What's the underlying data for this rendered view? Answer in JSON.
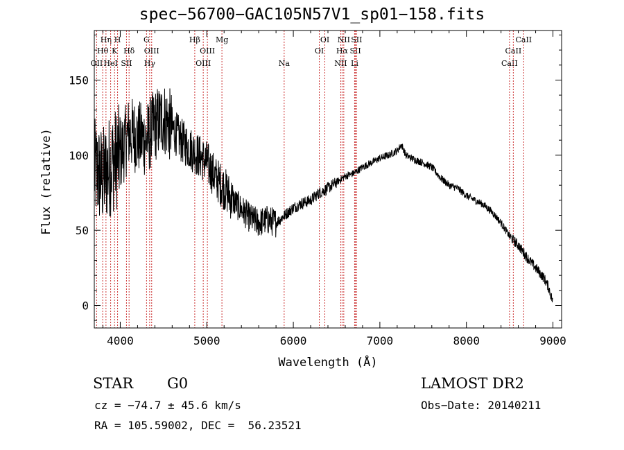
{
  "chart_data": {
    "type": "line",
    "title": "spec−56700−GAC105N57V1_sp01−158.fits",
    "xlabel": "Wavelength (Å)",
    "ylabel": "Flux (relative)",
    "xlim": [
      3700,
      9100
    ],
    "ylim": [
      -15,
      183
    ],
    "xticks": [
      4000,
      5000,
      6000,
      7000,
      8000,
      9000
    ],
    "yticks": [
      0,
      50,
      100,
      150
    ],
    "grid": false,
    "series": [
      {
        "x": [
          3700,
          3800,
          3900,
          4000,
          4100,
          4200,
          4300,
          4400,
          4500,
          4600,
          4700,
          4800,
          4900,
          5000,
          5100,
          5200,
          5300,
          5400,
          5500,
          5600,
          5700,
          5800,
          5900,
          6000,
          6100,
          6200,
          6300,
          6400,
          6500,
          6600,
          6700,
          6800,
          6900,
          7000,
          7100,
          7200,
          7250,
          7300,
          7400,
          7500,
          7600,
          7700,
          7800,
          7900,
          8000,
          8100,
          8200,
          8300,
          8400,
          8500,
          8600,
          8700,
          8800,
          8900,
          8950,
          9000
        ],
        "values": [
          90,
          85,
          95,
          100,
          115,
          112,
          110,
          120,
          125,
          118,
          110,
          105,
          100,
          95,
          85,
          78,
          70,
          64,
          58,
          55,
          57,
          55,
          60,
          65,
          68,
          70,
          75,
          78,
          82,
          86,
          88,
          92,
          95,
          98,
          100,
          103,
          107,
          100,
          97,
          95,
          92,
          85,
          80,
          78,
          73,
          70,
          67,
          62,
          55,
          46,
          40,
          32,
          25,
          18,
          12,
          2
        ],
        "color": "#000000"
      }
    ],
    "line_markers": [
      {
        "label": "OII",
        "x": 3727,
        "row": 3
      },
      {
        "label": "Hθ",
        "x": 3797,
        "row": 2
      },
      {
        "label": "Hη",
        "x": 3835,
        "row": 1
      },
      {
        "label": "HeI",
        "x": 3889,
        "row": 3
      },
      {
        "label": "K",
        "x": 3934,
        "row": 2
      },
      {
        "label": "H",
        "x": 3969,
        "row": 1
      },
      {
        "label": "SII",
        "x": 4072,
        "row": 3
      },
      {
        "label": "Hδ",
        "x": 4102,
        "row": 2
      },
      {
        "label": "G",
        "x": 4304,
        "row": 1
      },
      {
        "label": "Hγ",
        "x": 4340,
        "row": 3
      },
      {
        "label": "OIII",
        "x": 4363,
        "row": 2
      },
      {
        "label": "Hβ",
        "x": 4861,
        "row": 1
      },
      {
        "label": "OIII",
        "x": 4959,
        "row": 3
      },
      {
        "label": "OIII",
        "x": 5007,
        "row": 2
      },
      {
        "label": "Mg",
        "x": 5175,
        "row": 1
      },
      {
        "label": "Na",
        "x": 5894,
        "row": 3
      },
      {
        "label": "OI",
        "x": 6300,
        "row": 2
      },
      {
        "label": "OI",
        "x": 6364,
        "row": 1
      },
      {
        "label": "NII",
        "x": 6548,
        "row": 3
      },
      {
        "label": "Hα",
        "x": 6563,
        "row": 2
      },
      {
        "label": "NII",
        "x": 6583,
        "row": 1
      },
      {
        "label": "Li",
        "x": 6708,
        "row": 3
      },
      {
        "label": "SII",
        "x": 6717,
        "row": 2
      },
      {
        "label": "SII",
        "x": 6731,
        "row": 1
      },
      {
        "label": "CaII",
        "x": 8498,
        "row": 3
      },
      {
        "label": "CaII",
        "x": 8542,
        "row": 2
      },
      {
        "label": "CaII",
        "x": 8662,
        "row": 1
      }
    ],
    "marker_color": "#cc3333"
  },
  "info": {
    "class": "STAR",
    "subclass": "G0",
    "survey": "LAMOST DR2",
    "cz": "cz = −74.7 ± 45.6 km/s",
    "obs_date": "Obs−Date: 20140211",
    "radec": "RA = 105.59002, DEC =  56.23521"
  }
}
